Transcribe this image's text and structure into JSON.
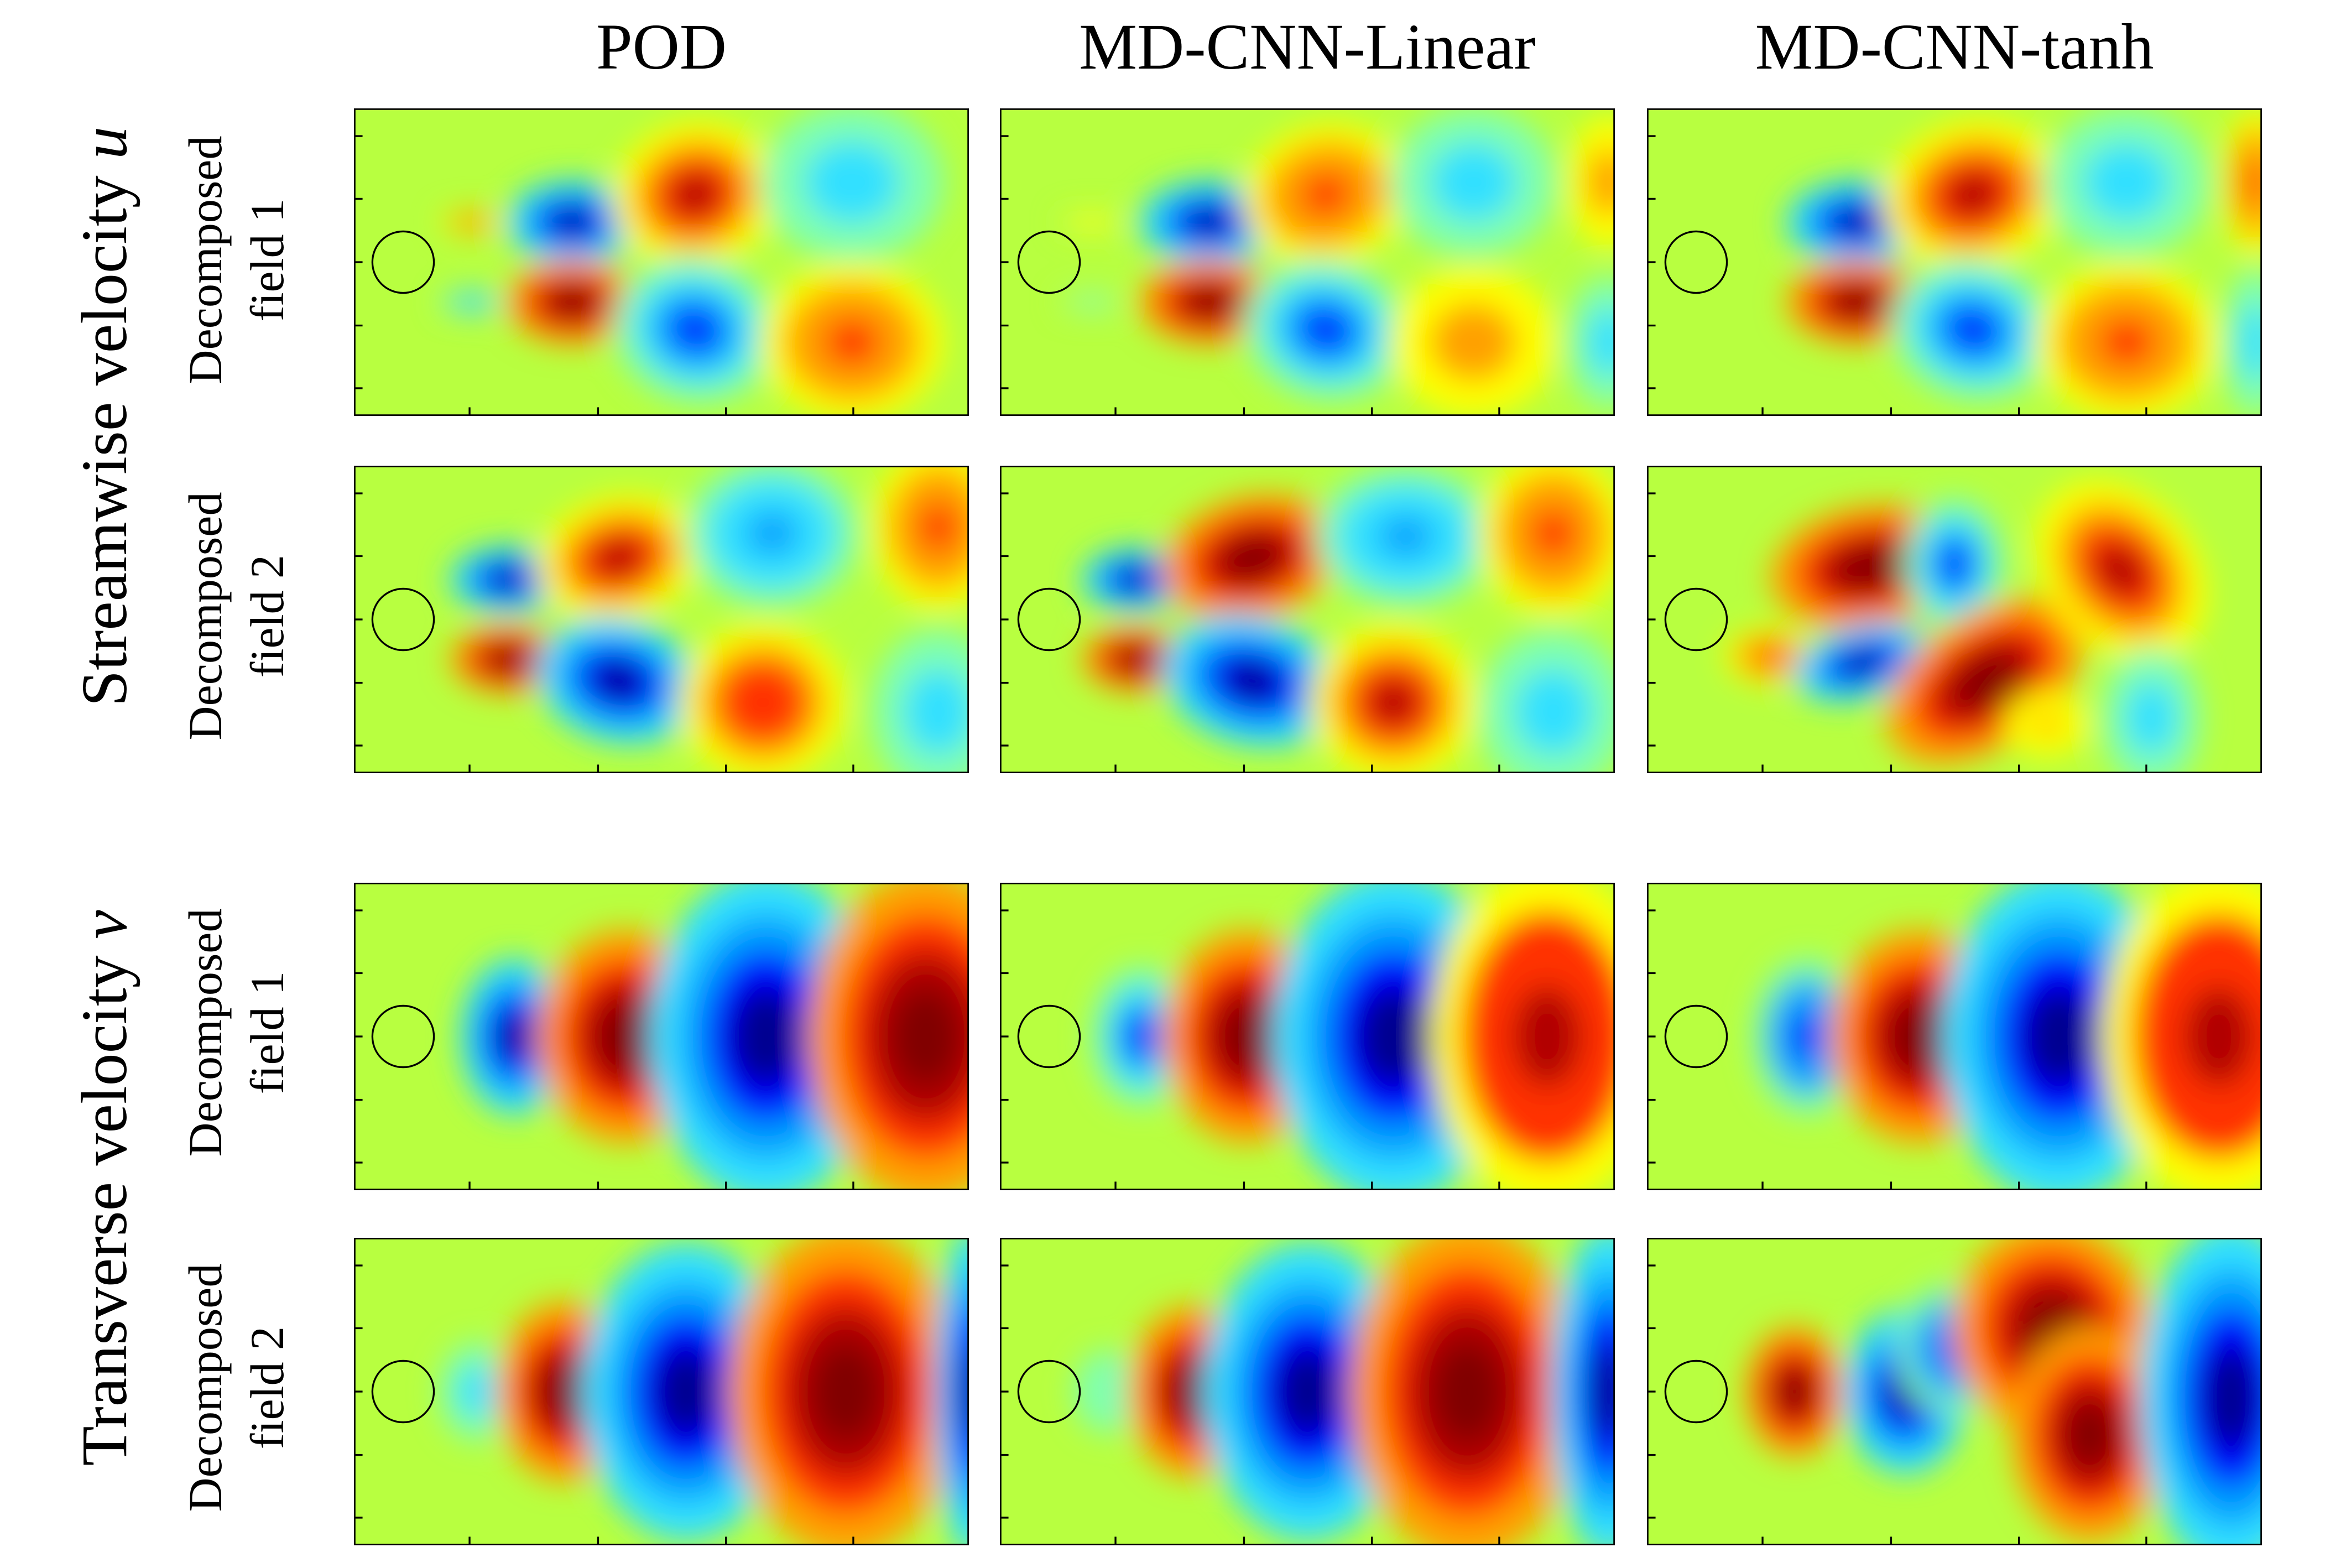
{
  "figure": {
    "columns": [
      {
        "id": "pod",
        "title": "POD"
      },
      {
        "id": "linear",
        "title": "MD-CNN-Linear"
      },
      {
        "id": "tanh",
        "title": "MD-CNN-tanh"
      }
    ],
    "groups": [
      {
        "id": "u",
        "label": "Streamwise velocity",
        "variable": "u"
      },
      {
        "id": "v",
        "label": "Transverse velocity",
        "variable": "v"
      }
    ],
    "rows": [
      {
        "group": "u",
        "line1": "Decomposed",
        "line2": "field 1"
      },
      {
        "group": "u",
        "line1": "Decomposed",
        "line2": "field 2"
      },
      {
        "group": "v",
        "line1": "Decomposed",
        "line2": "field 1"
      },
      {
        "group": "v",
        "line1": "Decomposed",
        "line2": "field 2"
      }
    ],
    "colormap": {
      "name": "jet",
      "stops": [
        "#00008f",
        "#0000ff",
        "#00a0ff",
        "#30e0ff",
        "#7fffb0",
        "#b8ff40",
        "#ffff00",
        "#ffa000",
        "#ff3000",
        "#b00000",
        "#800000"
      ],
      "background_value": 0.5
    },
    "cylinder_outline_color": "#000000"
  }
}
